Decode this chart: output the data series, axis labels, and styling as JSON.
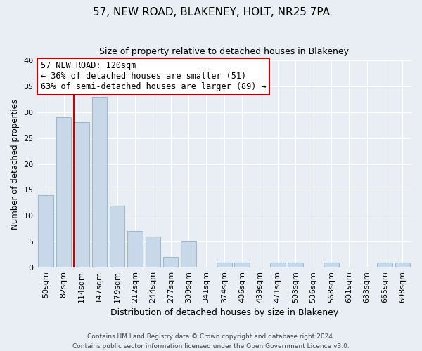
{
  "title": "57, NEW ROAD, BLAKENEY, HOLT, NR25 7PA",
  "subtitle": "Size of property relative to detached houses in Blakeney",
  "xlabel": "Distribution of detached houses by size in Blakeney",
  "ylabel": "Number of detached properties",
  "bar_labels": [
    "50sqm",
    "82sqm",
    "114sqm",
    "147sqm",
    "179sqm",
    "212sqm",
    "244sqm",
    "277sqm",
    "309sqm",
    "341sqm",
    "374sqm",
    "406sqm",
    "439sqm",
    "471sqm",
    "503sqm",
    "536sqm",
    "568sqm",
    "601sqm",
    "633sqm",
    "665sqm",
    "698sqm"
  ],
  "bar_values": [
    14,
    29,
    28,
    33,
    12,
    7,
    6,
    2,
    5,
    0,
    1,
    1,
    0,
    1,
    1,
    0,
    1,
    0,
    0,
    1,
    1
  ],
  "bar_color": "#c8d8e8",
  "bar_edgecolor": "#a0b8cc",
  "highlight_line_color": "#cc0000",
  "ylim": [
    0,
    40
  ],
  "yticks": [
    0,
    5,
    10,
    15,
    20,
    25,
    30,
    35,
    40
  ],
  "annotation_title": "57 NEW ROAD: 120sqm",
  "annotation_line1": "← 36% of detached houses are smaller (51)",
  "annotation_line2": "63% of semi-detached houses are larger (89) →",
  "annotation_box_color": "#ffffff",
  "annotation_box_edgecolor": "#cc0000",
  "footer_line1": "Contains HM Land Registry data © Crown copyright and database right 2024.",
  "footer_line2": "Contains public sector information licensed under the Open Government Licence v3.0.",
  "bg_color": "#e8eef4",
  "grid_color": "#ffffff",
  "figsize": [
    6.0,
    5.0
  ],
  "dpi": 100
}
